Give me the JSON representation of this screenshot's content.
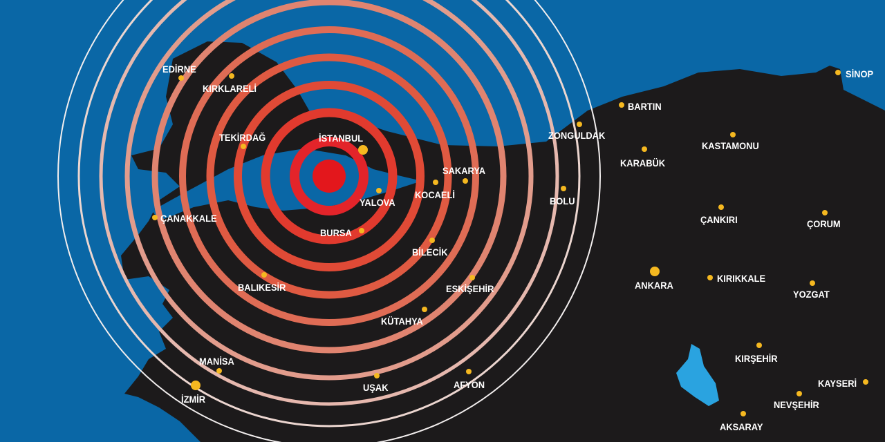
{
  "colors": {
    "sea": "#0a67a6",
    "land": "#1c1a1b",
    "epicenter": "#e3171c",
    "city_dot": "#f5b820",
    "ring_inner": "#e0402c",
    "ring_outer": "#e8ddd8"
  },
  "epicenter_icon": "red-circle",
  "cities": [
    {
      "name": "EDİRNE"
    },
    {
      "name": "KIRKLARELİ"
    },
    {
      "name": "TEKİRDAĞ"
    },
    {
      "name": "İSTANBUL"
    },
    {
      "name": "SAKARYA"
    },
    {
      "name": "KOCAELİ"
    },
    {
      "name": "YALOVA"
    },
    {
      "name": "BURSA"
    },
    {
      "name": "ÇANAKKALE"
    },
    {
      "name": "BİLECİK"
    },
    {
      "name": "BALIKESİR"
    },
    {
      "name": "ESKİŞEHİR"
    },
    {
      "name": "KÜTAHYA"
    },
    {
      "name": "MANİSA"
    },
    {
      "name": "İZMİR"
    },
    {
      "name": "UŞAK"
    },
    {
      "name": "AFYON"
    },
    {
      "name": "ZONGULDAK"
    },
    {
      "name": "BARTIN"
    },
    {
      "name": "KARABÜK"
    },
    {
      "name": "BOLU"
    },
    {
      "name": "KASTAMONU"
    },
    {
      "name": "SİNOP"
    },
    {
      "name": "ÇANKIRI"
    },
    {
      "name": "ÇORUM"
    },
    {
      "name": "ANKARA"
    },
    {
      "name": "KIRIKKALE"
    },
    {
      "name": "YOZGAT"
    },
    {
      "name": "KIRŞEHİR"
    },
    {
      "name": "KAYSERİ"
    },
    {
      "name": "NEVŞEHİR"
    },
    {
      "name": "AKSARAY"
    }
  ]
}
